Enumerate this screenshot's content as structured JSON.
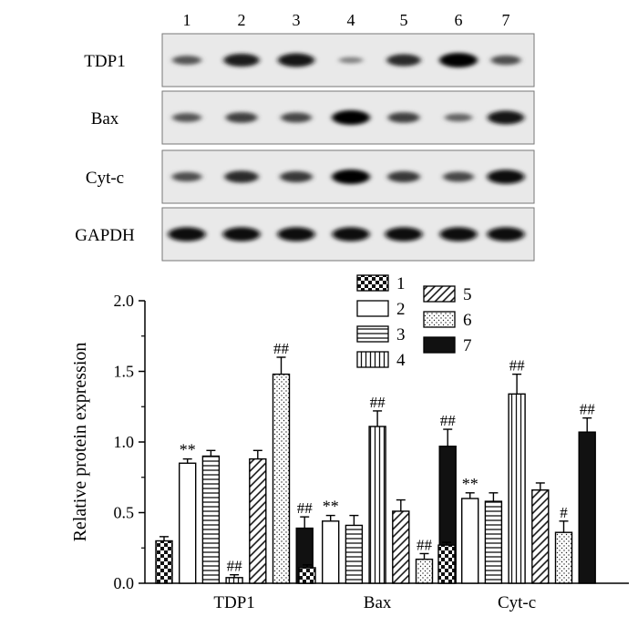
{
  "blot": {
    "lane_labels": [
      "1",
      "2",
      "3",
      "4",
      "5",
      "6",
      "7"
    ],
    "rows": [
      {
        "label": "TDP1",
        "band_intensity": [
          0.45,
          0.85,
          0.9,
          0.15,
          0.75,
          1.0,
          0.5
        ]
      },
      {
        "label": "Bax",
        "band_intensity": [
          0.45,
          0.6,
          0.55,
          1.0,
          0.6,
          0.35,
          0.9
        ]
      },
      {
        "label": "Cyt-c",
        "band_intensity": [
          0.5,
          0.75,
          0.65,
          1.0,
          0.65,
          0.55,
          0.95
        ]
      },
      {
        "label": "GAPDH",
        "band_intensity": [
          0.95,
          0.95,
          0.95,
          0.95,
          0.95,
          0.95,
          0.95
        ]
      }
    ]
  },
  "chart_data": {
    "type": "bar",
    "ylabel": "Relative protein expression",
    "xlabel": "",
    "ylim": [
      0,
      2.0
    ],
    "yticks": [
      "0.0",
      "0.5",
      "1.0",
      "1.5",
      "2.0"
    ],
    "categories": [
      "TDP1",
      "Bax",
      "Cyt-c"
    ],
    "legend_position": "top-right",
    "series": [
      {
        "name": "1",
        "pattern": "checker",
        "values": [
          0.3,
          0.11,
          0.27
        ],
        "errors": [
          0.03,
          0.02,
          0.02
        ],
        "annotations": [
          "",
          "",
          ""
        ]
      },
      {
        "name": "2",
        "pattern": "open",
        "values": [
          0.85,
          0.44,
          0.6
        ],
        "errors": [
          0.03,
          0.04,
          0.04
        ],
        "annotations": [
          "**",
          "**",
          "**"
        ]
      },
      {
        "name": "3",
        "pattern": "horizontal",
        "values": [
          0.9,
          0.41,
          0.58
        ],
        "errors": [
          0.04,
          0.07,
          0.06
        ],
        "annotations": [
          "",
          "",
          ""
        ]
      },
      {
        "name": "4",
        "pattern": "vertical",
        "values": [
          0.04,
          1.11,
          1.34
        ],
        "errors": [
          0.02,
          0.11,
          0.14
        ],
        "annotations": [
          "##",
          "##",
          "##"
        ]
      },
      {
        "name": "5",
        "pattern": "diagonal",
        "values": [
          0.88,
          0.51,
          0.66
        ],
        "errors": [
          0.06,
          0.08,
          0.05
        ],
        "annotations": [
          "",
          "",
          ""
        ]
      },
      {
        "name": "6",
        "pattern": "dots",
        "values": [
          1.48,
          0.17,
          0.36
        ],
        "errors": [
          0.12,
          0.04,
          0.08
        ],
        "annotations": [
          "##",
          "##",
          "#"
        ]
      },
      {
        "name": "7",
        "pattern": "solid",
        "values": [
          0.39,
          0.97,
          1.07
        ],
        "errors": [
          0.08,
          0.12,
          0.1
        ],
        "annotations": [
          "##",
          "##",
          "##"
        ]
      }
    ]
  }
}
